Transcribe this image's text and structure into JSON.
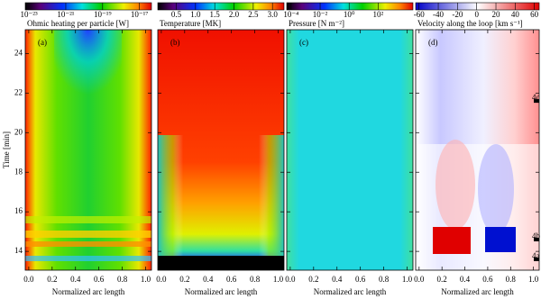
{
  "chart_data": [
    {
      "type": "heatmap",
      "panel_label": "(a)",
      "colorbar_title": "Ohmic heating per particle [W]",
      "colorbar_log": true,
      "colorbar_lim": [
        6.3e-24,
        4.5e-17
      ],
      "colorbar_ticks": [
        {
          "value": 1e-23,
          "label": "10⁻²³"
        },
        {
          "value": 1e-21,
          "label": "10⁻²¹"
        },
        {
          "value": 1e-19,
          "label": "10⁻¹⁹"
        },
        {
          "value": 1e-17,
          "label": "10⁻¹⁷"
        }
      ],
      "xlabel": "Normalized arc length",
      "ylabel": "Time [min]",
      "xlim": [
        -0.03,
        1.05
      ],
      "xticks": [
        {
          "value": 0,
          "label": "0.0"
        },
        0.2,
        0.4,
        0.6,
        0.8,
        {
          "value": 1,
          "label": "1.0"
        }
      ],
      "ylim": [
        13.05,
        25.2
      ],
      "yticks": [
        14,
        16,
        18,
        20,
        22,
        24
      ]
    },
    {
      "type": "heatmap",
      "panel_label": "(b)",
      "colorbar_title": "Temperature [MK]",
      "colorbar_log": false,
      "colorbar_lim": [
        0.02,
        3.3
      ],
      "colorbar_ticks": [
        0.5,
        {
          "value": 1,
          "label": "1.0"
        },
        1.5,
        {
          "value": 2,
          "label": "2.0"
        },
        2.5,
        {
          "value": 3,
          "label": "3.0"
        }
      ],
      "xlabel": "Normalized arc length",
      "xlim": [
        -0.03,
        1.05
      ],
      "xticks": [
        {
          "value": 0,
          "label": "0.0"
        },
        0.2,
        0.4,
        0.6,
        0.8,
        {
          "value": 1,
          "label": "1.0"
        }
      ],
      "ylim": [
        13.05,
        25.2
      ]
    },
    {
      "type": "heatmap",
      "panel_label": "(c)",
      "colorbar_title": "Pressure [N m⁻²]",
      "colorbar_log": true,
      "colorbar_lim": [
        5e-05,
        25000.0
      ],
      "colorbar_ticks": [
        {
          "value": 0.0001,
          "label": "10⁻⁴"
        },
        {
          "value": 0.01,
          "label": "10⁻²"
        },
        {
          "value": 1,
          "label": "10⁰"
        },
        {
          "value": 100,
          "label": "10²"
        }
      ],
      "xlabel": "Normalized arc length",
      "xlim": [
        -0.03,
        1.05
      ],
      "xticks": [
        {
          "value": 0,
          "label": "0.0"
        },
        0.2,
        0.4,
        0.6,
        0.8,
        {
          "value": 1,
          "label": "1.0"
        }
      ],
      "ylim": [
        13.05,
        25.2
      ]
    },
    {
      "type": "heatmap",
      "panel_label": "(d)",
      "colorbar_title": "Velocity along the loop [km s⁻¹]",
      "colorbar_log": false,
      "colorbar_lim": [
        -63.5,
        65
      ],
      "colorbar_ticks": [
        -60,
        -40,
        -20,
        0,
        20,
        40,
        60
      ],
      "xlabel": "Normalized arc length",
      "xlim": [
        -0.03,
        1.05
      ],
      "xticks": [
        {
          "value": 0,
          "label": "0.0"
        },
        0.2,
        0.4,
        0.6,
        0.8,
        {
          "value": 1,
          "label": "1.0"
        }
      ],
      "ylim": [
        13.05,
        25.2
      ],
      "markers": [
        {
          "value": 21.6,
          "label": "4c"
        },
        {
          "value": 14.6,
          "label": "4b"
        },
        {
          "value": 13.6,
          "label": "4a"
        }
      ]
    }
  ]
}
